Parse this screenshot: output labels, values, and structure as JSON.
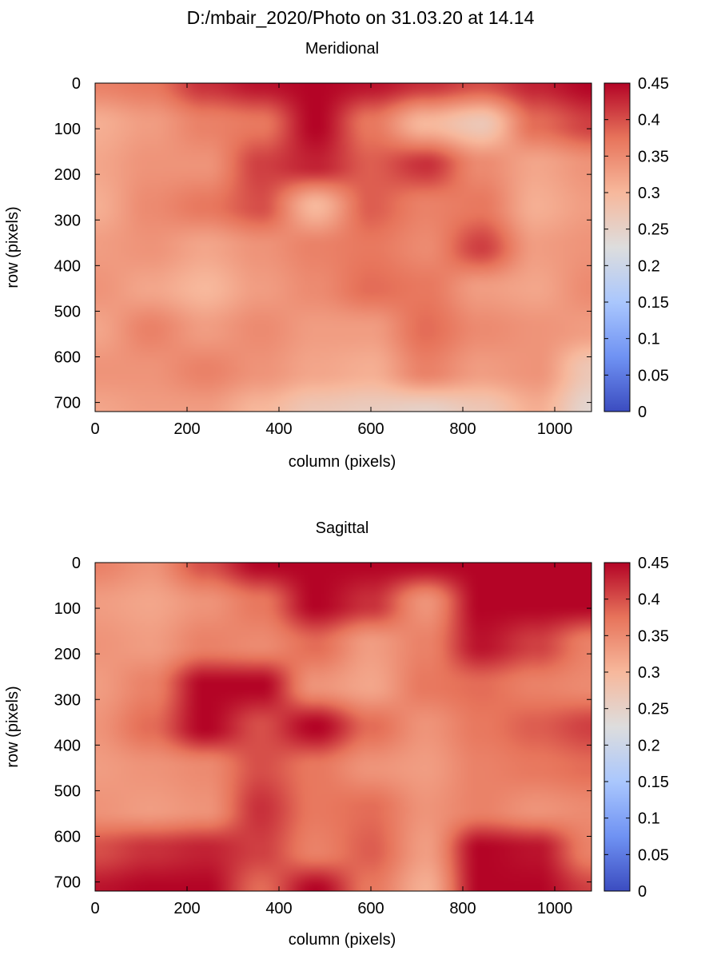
{
  "figure": {
    "title": "D:/mbair_2020/Photo on 31.03.20 at 14.14"
  },
  "colors": {
    "colormap": [
      "#3b4cc0",
      "#6f92f3",
      "#aac7fd",
      "#dddddd",
      "#f7b89c",
      "#e7745b",
      "#b40426"
    ]
  },
  "chart_data": [
    {
      "type": "heatmap",
      "title": "Meridional",
      "xlabel": "column (pixels)",
      "ylabel": "row (pixels)",
      "xlim": [
        0,
        1080
      ],
      "ylim": [
        720,
        0
      ],
      "x_ticks": [
        "0",
        "200",
        "400",
        "600",
        "800",
        "1000"
      ],
      "x_tick_values": [
        0,
        200,
        400,
        600,
        800,
        1000
      ],
      "y_ticks": [
        "0",
        "100",
        "200",
        "300",
        "400",
        "500",
        "600",
        "700"
      ],
      "y_tick_values": [
        0,
        100,
        200,
        300,
        400,
        500,
        600,
        700
      ],
      "colorbar": {
        "range": [
          0,
          0.45
        ],
        "ticks": [
          "0",
          "0.05",
          "0.1",
          "0.15",
          "0.2",
          "0.25",
          "0.3",
          "0.35",
          "0.4",
          "0.45"
        ],
        "tick_values": [
          0,
          0.05,
          0.1,
          0.15,
          0.2,
          0.25,
          0.3,
          0.35,
          0.4,
          0.45
        ]
      },
      "x": [
        0,
        120,
        240,
        360,
        480,
        600,
        720,
        840,
        960,
        1080
      ],
      "y": [
        0,
        90,
        180,
        270,
        360,
        450,
        540,
        630,
        720
      ],
      "z": [
        [
          0.36,
          0.37,
          0.42,
          0.44,
          0.45,
          0.44,
          0.42,
          0.4,
          0.43,
          0.45
        ],
        [
          0.31,
          0.33,
          0.36,
          0.37,
          0.45,
          0.37,
          0.3,
          0.27,
          0.38,
          0.41
        ],
        [
          0.32,
          0.34,
          0.34,
          0.41,
          0.43,
          0.39,
          0.42,
          0.35,
          0.32,
          0.34
        ],
        [
          0.31,
          0.35,
          0.37,
          0.4,
          0.3,
          0.39,
          0.36,
          0.37,
          0.31,
          0.33
        ],
        [
          0.33,
          0.34,
          0.32,
          0.34,
          0.36,
          0.37,
          0.35,
          0.41,
          0.33,
          0.34
        ],
        [
          0.34,
          0.32,
          0.3,
          0.33,
          0.35,
          0.38,
          0.37,
          0.33,
          0.32,
          0.35
        ],
        [
          0.32,
          0.36,
          0.33,
          0.35,
          0.33,
          0.33,
          0.38,
          0.35,
          0.34,
          0.33
        ],
        [
          0.34,
          0.34,
          0.36,
          0.34,
          0.32,
          0.31,
          0.36,
          0.33,
          0.34,
          0.27
        ],
        [
          0.32,
          0.33,
          0.33,
          0.3,
          0.27,
          0.26,
          0.25,
          0.27,
          0.31,
          0.24
        ]
      ]
    },
    {
      "type": "heatmap",
      "title": "Sagittal",
      "xlabel": "column (pixels)",
      "ylabel": "row (pixels)",
      "xlim": [
        0,
        1080
      ],
      "ylim": [
        720,
        0
      ],
      "x_ticks": [
        "0",
        "200",
        "400",
        "600",
        "800",
        "1000"
      ],
      "x_tick_values": [
        0,
        200,
        400,
        600,
        800,
        1000
      ],
      "y_ticks": [
        "0",
        "100",
        "200",
        "300",
        "400",
        "500",
        "600",
        "700"
      ],
      "y_tick_values": [
        0,
        100,
        200,
        300,
        400,
        500,
        600,
        700
      ],
      "colorbar": {
        "range": [
          0,
          0.45
        ],
        "ticks": [
          "0",
          "0.05",
          "0.1",
          "0.15",
          "0.2",
          "0.25",
          "0.3",
          "0.35",
          "0.4",
          "0.45"
        ],
        "tick_values": [
          0,
          0.05,
          0.1,
          0.15,
          0.2,
          0.25,
          0.3,
          0.35,
          0.4,
          0.45
        ]
      },
      "x": [
        0,
        120,
        240,
        360,
        480,
        600,
        720,
        840,
        960,
        1080
      ],
      "y": [
        0,
        90,
        180,
        270,
        360,
        450,
        540,
        630,
        720
      ],
      "z": [
        [
          0.36,
          0.34,
          0.4,
          0.45,
          0.45,
          0.45,
          0.45,
          0.45,
          0.45,
          0.45
        ],
        [
          0.33,
          0.32,
          0.34,
          0.37,
          0.45,
          0.42,
          0.34,
          0.45,
          0.45,
          0.45
        ],
        [
          0.34,
          0.33,
          0.36,
          0.35,
          0.38,
          0.33,
          0.36,
          0.44,
          0.41,
          0.36
        ],
        [
          0.33,
          0.36,
          0.45,
          0.45,
          0.34,
          0.32,
          0.37,
          0.38,
          0.36,
          0.35
        ],
        [
          0.34,
          0.38,
          0.45,
          0.4,
          0.45,
          0.38,
          0.34,
          0.37,
          0.39,
          0.41
        ],
        [
          0.33,
          0.34,
          0.35,
          0.4,
          0.37,
          0.34,
          0.33,
          0.36,
          0.37,
          0.38
        ],
        [
          0.34,
          0.33,
          0.34,
          0.42,
          0.37,
          0.38,
          0.34,
          0.36,
          0.34,
          0.35
        ],
        [
          0.4,
          0.42,
          0.43,
          0.41,
          0.36,
          0.39,
          0.33,
          0.45,
          0.44,
          0.36
        ],
        [
          0.44,
          0.45,
          0.45,
          0.38,
          0.45,
          0.37,
          0.31,
          0.45,
          0.45,
          0.41
        ]
      ]
    }
  ]
}
